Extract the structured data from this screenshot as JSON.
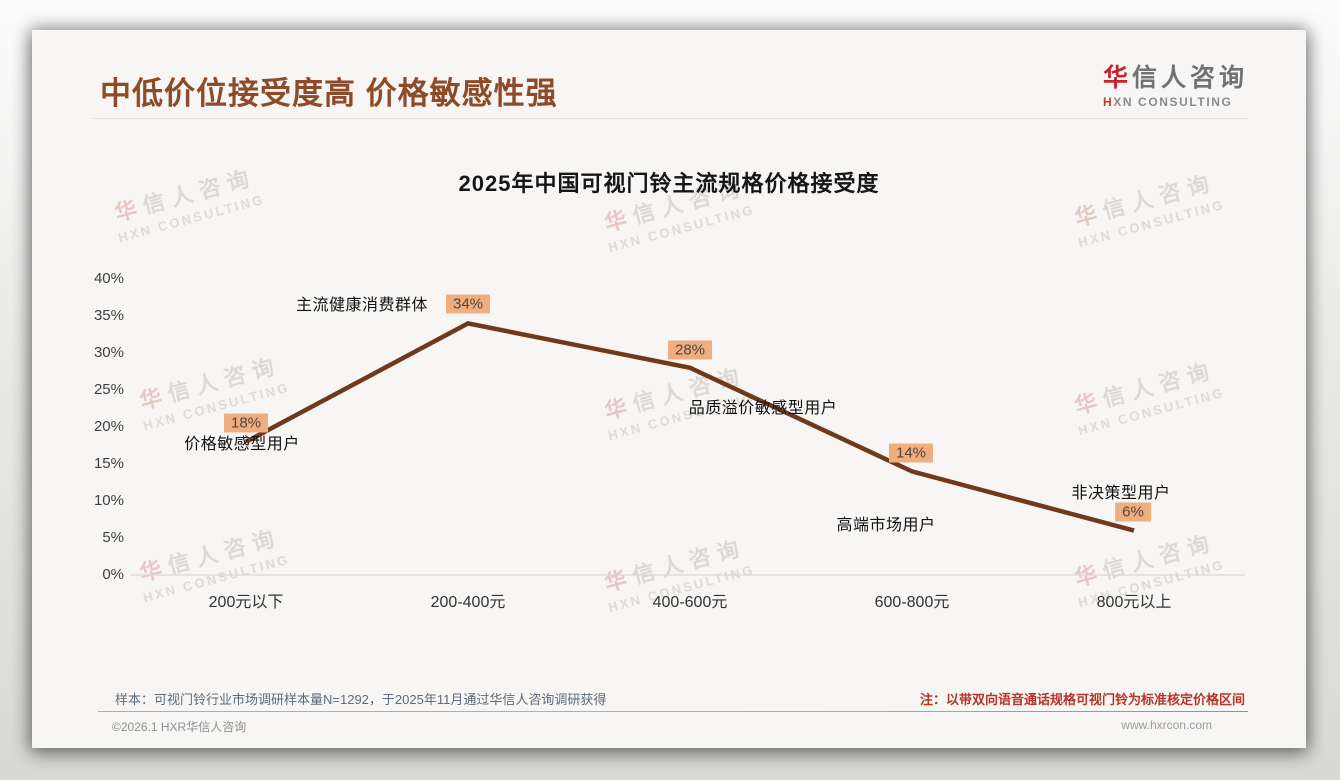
{
  "header": {
    "page_title": "中低价位接受度高 价格敏感性强",
    "logo": {
      "zh_accent": "华",
      "zh_rest": "信人咨询",
      "en_accent": "H",
      "en_rest": "XN CONSULTING"
    }
  },
  "watermark": {
    "zh_accent": "华",
    "zh_rest": "信人咨询",
    "en": "HXN CONSULTING"
  },
  "chart_data": {
    "type": "line",
    "title": "2025年中国可视门铃主流规格价格接受度",
    "categories": [
      "200元以下",
      "200-400元",
      "400-600元",
      "600-800元",
      "800元以上"
    ],
    "values": [
      18,
      34,
      28,
      14,
      6
    ],
    "data_labels": [
      "18%",
      "34%",
      "28%",
      "14%",
      "6%"
    ],
    "annotations": [
      "价格敏感型用户",
      "主流健康消费群体",
      "品质溢价敏感型用户",
      "高端市场用户",
      "非决策型用户"
    ],
    "y_ticks": [
      "40%",
      "35%",
      "30%",
      "25%",
      "20%",
      "15%",
      "10%",
      "5%",
      "0%"
    ],
    "ylim": [
      0,
      40
    ],
    "xlabel": "",
    "ylabel": "",
    "grid": false,
    "legend": "none",
    "line_color": "#70391c",
    "label_bg_color": "#f0ae7e"
  },
  "footer": {
    "sample_note": "样本：可视门铃行业市场调研样本量N=1292，于2025年11月通过华信人咨询调研获得",
    "price_note": "注：以带双向语音通话规格可视门铃为标准核定价格区间",
    "copyright": "©2026.1 HXR华信人咨询",
    "website": "www.hxrcon.com"
  }
}
